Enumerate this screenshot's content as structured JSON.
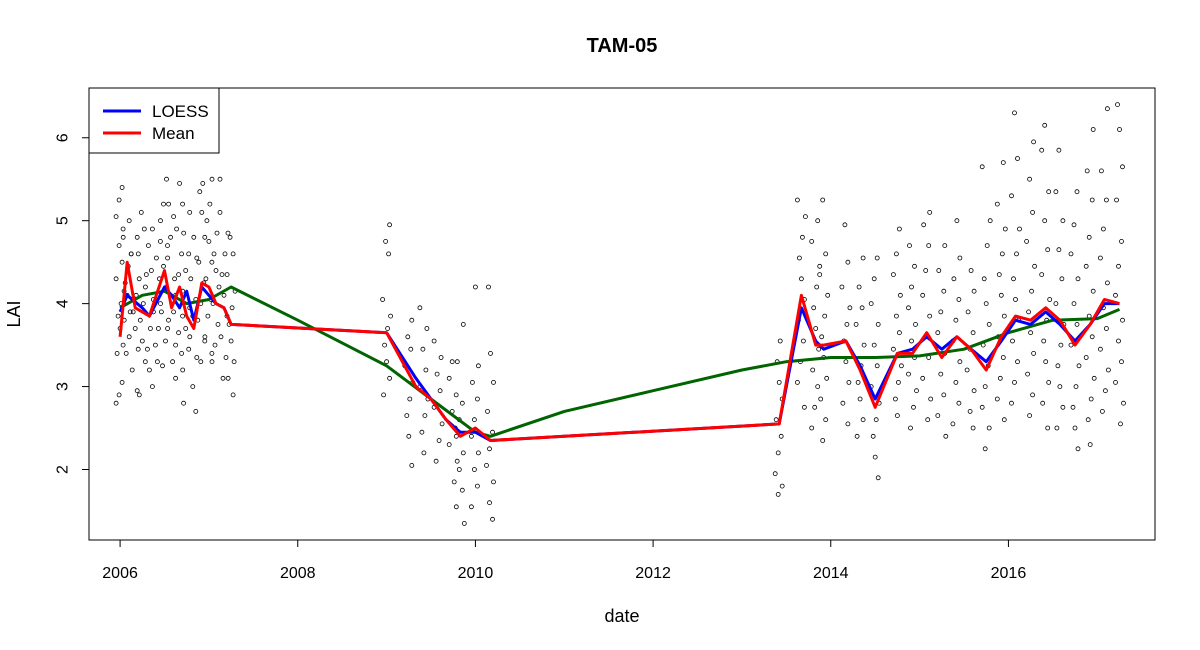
{
  "chart_data": {
    "type": "line",
    "title": "TAM-05",
    "xlabel": "date",
    "ylabel": "LAI",
    "x_unit": "year",
    "xlim": [
      2005.65,
      2017.65
    ],
    "ylim": [
      1.15,
      6.6
    ],
    "x_ticks": [
      2006,
      2008,
      2010,
      2012,
      2014,
      2016
    ],
    "x_tick_labels": [
      "2006",
      "2008",
      "2010",
      "2012",
      "2014",
      "2016"
    ],
    "y_ticks": [
      2,
      3,
      4,
      5,
      6
    ],
    "y_tick_labels": [
      "2",
      "3",
      "4",
      "5",
      "6"
    ],
    "grid": false,
    "legend": {
      "position": "top-left",
      "entries": [
        {
          "label": "LOESS",
          "color": "#0000ff"
        },
        {
          "label": "Mean",
          "color": "#ff0000"
        }
      ]
    },
    "series": [
      {
        "name": "LOESS",
        "color": "#0000ff",
        "points": [
          [
            2006.0,
            3.9
          ],
          [
            2006.08,
            4.1
          ],
          [
            2006.25,
            3.95
          ],
          [
            2006.33,
            3.85
          ],
          [
            2006.5,
            4.2
          ],
          [
            2006.58,
            4.1
          ],
          [
            2006.67,
            3.95
          ],
          [
            2006.75,
            4.15
          ],
          [
            2006.83,
            3.8
          ],
          [
            2006.92,
            4.2
          ],
          [
            2007.0,
            4.1
          ],
          [
            2007.08,
            4.0
          ],
          [
            2007.17,
            3.95
          ],
          [
            2007.25,
            3.75
          ],
          [
            2009.0,
            3.65
          ],
          [
            2009.33,
            3.1
          ],
          [
            2009.5,
            2.85
          ],
          [
            2009.67,
            2.6
          ],
          [
            2009.83,
            2.45
          ],
          [
            2010.0,
            2.45
          ],
          [
            2010.17,
            2.35
          ],
          [
            2013.42,
            2.55
          ],
          [
            2013.67,
            3.95
          ],
          [
            2013.83,
            3.55
          ],
          [
            2013.92,
            3.45
          ],
          [
            2014.17,
            3.55
          ],
          [
            2014.33,
            3.25
          ],
          [
            2014.5,
            2.85
          ],
          [
            2014.75,
            3.4
          ],
          [
            2014.92,
            3.45
          ],
          [
            2015.08,
            3.6
          ],
          [
            2015.25,
            3.45
          ],
          [
            2015.42,
            3.6
          ],
          [
            2015.58,
            3.45
          ],
          [
            2015.75,
            3.3
          ],
          [
            2015.92,
            3.55
          ],
          [
            2016.08,
            3.8
          ],
          [
            2016.25,
            3.75
          ],
          [
            2016.42,
            3.9
          ],
          [
            2016.58,
            3.75
          ],
          [
            2016.75,
            3.55
          ],
          [
            2016.92,
            3.75
          ],
          [
            2017.08,
            4.0
          ],
          [
            2017.25,
            4.0
          ]
        ]
      },
      {
        "name": "Mean",
        "color": "#ff0000",
        "points": [
          [
            2006.0,
            3.6
          ],
          [
            2006.08,
            4.5
          ],
          [
            2006.17,
            3.95
          ],
          [
            2006.33,
            3.85
          ],
          [
            2006.5,
            4.4
          ],
          [
            2006.58,
            3.95
          ],
          [
            2006.67,
            4.2
          ],
          [
            2006.75,
            3.85
          ],
          [
            2006.83,
            3.7
          ],
          [
            2006.92,
            4.25
          ],
          [
            2007.0,
            4.2
          ],
          [
            2007.08,
            4.0
          ],
          [
            2007.17,
            3.95
          ],
          [
            2007.25,
            3.75
          ],
          [
            2009.0,
            3.65
          ],
          [
            2009.33,
            3.0
          ],
          [
            2009.5,
            2.85
          ],
          [
            2009.67,
            2.6
          ],
          [
            2009.83,
            2.4
          ],
          [
            2010.0,
            2.5
          ],
          [
            2010.17,
            2.35
          ],
          [
            2013.42,
            2.55
          ],
          [
            2013.67,
            4.1
          ],
          [
            2013.83,
            3.5
          ],
          [
            2013.92,
            3.5
          ],
          [
            2014.17,
            3.55
          ],
          [
            2014.33,
            3.2
          ],
          [
            2014.5,
            2.75
          ],
          [
            2014.75,
            3.4
          ],
          [
            2014.92,
            3.4
          ],
          [
            2015.08,
            3.65
          ],
          [
            2015.25,
            3.35
          ],
          [
            2015.42,
            3.6
          ],
          [
            2015.58,
            3.45
          ],
          [
            2015.75,
            3.2
          ],
          [
            2015.92,
            3.6
          ],
          [
            2016.08,
            3.85
          ],
          [
            2016.25,
            3.8
          ],
          [
            2016.42,
            3.95
          ],
          [
            2016.58,
            3.8
          ],
          [
            2016.75,
            3.5
          ],
          [
            2016.92,
            3.75
          ],
          [
            2017.08,
            4.05
          ],
          [
            2017.25,
            4.0
          ]
        ]
      },
      {
        "name": "",
        "color": "#006400",
        "points": [
          [
            2006.0,
            3.95
          ],
          [
            2006.25,
            4.1
          ],
          [
            2006.5,
            4.15
          ],
          [
            2006.75,
            4.0
          ],
          [
            2007.0,
            4.05
          ],
          [
            2007.25,
            4.2
          ],
          [
            2008.0,
            3.8
          ],
          [
            2009.0,
            3.25
          ],
          [
            2009.5,
            2.85
          ],
          [
            2010.0,
            2.45
          ],
          [
            2010.17,
            2.4
          ],
          [
            2011.0,
            2.7
          ],
          [
            2012.0,
            2.95
          ],
          [
            2013.0,
            3.2
          ],
          [
            2013.5,
            3.3
          ],
          [
            2014.0,
            3.35
          ],
          [
            2014.5,
            3.35
          ],
          [
            2015.0,
            3.37
          ],
          [
            2015.5,
            3.45
          ],
          [
            2016.0,
            3.65
          ],
          [
            2016.5,
            3.8
          ],
          [
            2017.0,
            3.82
          ],
          [
            2017.25,
            3.93
          ]
        ]
      }
    ],
    "scatter_groups": [
      {
        "x": 2006.0,
        "y": [
          2.8,
          2.9,
          3.05,
          3.4,
          3.5,
          3.7,
          3.85,
          4.0,
          4.15,
          4.3,
          4.5,
          4.7,
          4.9,
          5.05,
          5.25,
          5.4
        ]
      },
      {
        "x": 2006.08,
        "y": [
          3.4,
          3.6,
          3.8,
          3.9,
          4.1,
          4.25,
          4.45,
          4.6,
          4.8,
          5.0
        ]
      },
      {
        "x": 2006.17,
        "y": [
          2.95,
          3.2,
          3.45,
          3.7,
          3.9,
          4.1,
          4.3,
          4.6,
          4.8
        ]
      },
      {
        "x": 2006.25,
        "y": [
          2.9,
          3.3,
          3.55,
          3.8,
          4.0,
          4.35,
          4.6,
          4.9,
          5.1
        ]
      },
      {
        "x": 2006.33,
        "y": [
          3.0,
          3.2,
          3.45,
          3.7,
          3.9,
          4.2,
          4.4,
          4.7,
          4.9
        ]
      },
      {
        "x": 2006.42,
        "y": [
          3.3,
          3.5,
          3.7,
          3.9,
          4.05,
          4.3,
          4.55,
          4.75
        ]
      },
      {
        "x": 2006.5,
        "y": [
          3.25,
          3.55,
          3.8,
          4.0,
          4.2,
          4.45,
          4.7,
          5.0,
          5.2,
          5.5
        ]
      },
      {
        "x": 2006.58,
        "y": [
          3.3,
          3.5,
          3.7,
          3.9,
          4.1,
          4.3,
          4.55,
          4.8,
          5.05,
          5.2
        ]
      },
      {
        "x": 2006.67,
        "y": [
          2.8,
          3.1,
          3.4,
          3.65,
          3.85,
          4.1,
          4.35,
          4.6,
          4.9,
          5.2,
          5.45
        ]
      },
      {
        "x": 2006.75,
        "y": [
          3.2,
          3.45,
          3.7,
          3.95,
          4.15,
          4.4,
          4.6,
          4.85,
          5.1
        ]
      },
      {
        "x": 2006.83,
        "y": [
          2.7,
          3.0,
          3.35,
          3.6,
          3.85,
          4.05,
          4.3,
          4.55,
          4.8
        ]
      },
      {
        "x": 2006.92,
        "y": [
          3.3,
          3.55,
          3.8,
          4.0,
          4.25,
          4.5,
          4.8,
          5.1,
          5.35,
          5.45
        ]
      },
      {
        "x": 2007.0,
        "y": [
          3.4,
          3.6,
          3.85,
          4.05,
          4.3,
          4.5,
          4.75,
          5.0,
          5.2
        ]
      },
      {
        "x": 2007.08,
        "y": [
          3.3,
          3.5,
          3.75,
          4.0,
          4.2,
          4.4,
          4.6,
          4.85,
          5.1,
          5.5
        ]
      },
      {
        "x": 2007.17,
        "y": [
          3.1,
          3.35,
          3.6,
          3.85,
          4.1,
          4.35,
          4.6,
          4.85,
          5.5
        ]
      },
      {
        "x": 2007.25,
        "y": [
          2.9,
          3.1,
          3.3,
          3.55,
          3.75,
          3.95,
          4.15,
          4.35,
          4.6,
          4.8
        ]
      },
      {
        "x": 2009.0,
        "y": [
          2.9,
          3.1,
          3.3,
          3.5,
          3.7,
          3.85,
          4.05,
          4.6,
          4.75,
          4.95
        ]
      },
      {
        "x": 2009.25,
        "y": [
          2.05,
          2.4,
          2.65,
          2.85,
          3.05,
          3.25,
          3.45,
          3.6,
          3.8
        ]
      },
      {
        "x": 2009.42,
        "y": [
          2.2,
          2.45,
          2.65,
          2.85,
          3.0,
          3.2,
          3.45,
          3.7,
          3.95
        ]
      },
      {
        "x": 2009.58,
        "y": [
          2.1,
          2.35,
          2.55,
          2.75,
          2.95,
          3.15,
          3.35,
          3.55
        ]
      },
      {
        "x": 2009.75,
        "y": [
          1.85,
          2.1,
          2.3,
          2.5,
          2.7,
          2.9,
          3.1,
          3.3
        ]
      },
      {
        "x": 2009.83,
        "y": [
          1.35,
          1.55,
          1.75,
          2.0,
          2.2,
          2.4,
          2.6,
          2.8,
          3.3,
          3.75
        ]
      },
      {
        "x": 2010.0,
        "y": [
          1.55,
          1.8,
          2.0,
          2.2,
          2.4,
          2.6,
          2.85,
          3.05,
          3.25,
          4.2
        ]
      },
      {
        "x": 2010.17,
        "y": [
          1.4,
          1.6,
          1.85,
          2.05,
          2.25,
          2.45,
          2.7,
          3.05,
          3.4,
          4.2
        ]
      },
      {
        "x": 2013.42,
        "y": [
          1.7,
          1.8,
          1.95,
          2.2,
          2.4,
          2.6,
          2.85,
          3.05,
          3.3,
          3.55
        ]
      },
      {
        "x": 2013.67,
        "y": [
          2.75,
          3.05,
          3.3,
          3.55,
          3.8,
          4.05,
          4.3,
          4.55,
          4.8,
          5.05,
          5.25
        ]
      },
      {
        "x": 2013.83,
        "y": [
          2.5,
          2.75,
          3.0,
          3.2,
          3.45,
          3.7,
          3.95,
          4.2,
          4.45,
          4.75,
          5.0
        ]
      },
      {
        "x": 2013.92,
        "y": [
          2.35,
          2.6,
          2.85,
          3.1,
          3.35,
          3.6,
          3.85,
          4.1,
          4.35,
          4.6,
          5.25
        ]
      },
      {
        "x": 2014.17,
        "y": [
          2.55,
          2.8,
          3.05,
          3.3,
          3.55,
          3.75,
          3.95,
          4.2,
          4.5,
          4.95
        ]
      },
      {
        "x": 2014.33,
        "y": [
          2.4,
          2.6,
          2.85,
          3.05,
          3.25,
          3.5,
          3.75,
          3.95,
          4.2,
          4.55
        ]
      },
      {
        "x": 2014.5,
        "y": [
          1.9,
          2.15,
          2.4,
          2.6,
          2.8,
          3.0,
          3.25,
          3.5,
          3.75,
          4.0,
          4.3,
          4.55
        ]
      },
      {
        "x": 2014.75,
        "y": [
          2.65,
          2.85,
          3.05,
          3.25,
          3.45,
          3.65,
          3.85,
          4.1,
          4.35,
          4.6,
          4.9
        ]
      },
      {
        "x": 2014.92,
        "y": [
          2.5,
          2.75,
          2.95,
          3.15,
          3.35,
          3.55,
          3.75,
          3.95,
          4.2,
          4.45,
          4.7
        ]
      },
      {
        "x": 2015.08,
        "y": [
          2.6,
          2.85,
          3.1,
          3.35,
          3.6,
          3.85,
          4.1,
          4.4,
          4.7,
          4.95,
          5.1
        ]
      },
      {
        "x": 2015.25,
        "y": [
          2.4,
          2.65,
          2.9,
          3.15,
          3.4,
          3.65,
          3.9,
          4.15,
          4.4,
          4.7
        ]
      },
      {
        "x": 2015.42,
        "y": [
          2.55,
          2.8,
          3.05,
          3.3,
          3.55,
          3.8,
          4.05,
          4.3,
          4.55,
          5.0
        ]
      },
      {
        "x": 2015.58,
        "y": [
          2.5,
          2.7,
          2.95,
          3.2,
          3.45,
          3.65,
          3.9,
          4.15,
          4.4
        ]
      },
      {
        "x": 2015.75,
        "y": [
          2.25,
          2.5,
          2.75,
          3.0,
          3.25,
          3.5,
          3.75,
          4.0,
          4.3,
          4.7,
          5.0,
          5.65
        ]
      },
      {
        "x": 2015.92,
        "y": [
          2.6,
          2.85,
          3.1,
          3.35,
          3.6,
          3.85,
          4.1,
          4.35,
          4.6,
          4.9,
          5.2,
          5.7
        ]
      },
      {
        "x": 2016.08,
        "y": [
          2.8,
          3.05,
          3.3,
          3.55,
          3.8,
          4.05,
          4.3,
          4.6,
          4.9,
          5.3,
          5.75,
          6.3
        ]
      },
      {
        "x": 2016.25,
        "y": [
          2.65,
          2.9,
          3.15,
          3.4,
          3.65,
          3.9,
          4.15,
          4.45,
          4.75,
          5.1,
          5.5,
          5.95
        ]
      },
      {
        "x": 2016.42,
        "y": [
          2.5,
          2.8,
          3.05,
          3.3,
          3.55,
          3.8,
          4.05,
          4.35,
          4.65,
          5.0,
          5.35,
          5.85,
          6.15
        ]
      },
      {
        "x": 2016.58,
        "y": [
          2.5,
          2.75,
          3.0,
          3.25,
          3.5,
          3.75,
          4.0,
          4.3,
          4.65,
          5.0,
          5.35,
          5.85
        ]
      },
      {
        "x": 2016.75,
        "y": [
          2.25,
          2.5,
          2.75,
          3.0,
          3.25,
          3.5,
          3.75,
          4.0,
          4.3,
          4.6,
          4.95,
          5.35
        ]
      },
      {
        "x": 2016.92,
        "y": [
          2.3,
          2.6,
          2.85,
          3.1,
          3.35,
          3.6,
          3.85,
          4.15,
          4.45,
          4.8,
          5.25,
          5.6,
          6.1
        ]
      },
      {
        "x": 2017.08,
        "y": [
          2.7,
          2.95,
          3.2,
          3.45,
          3.7,
          3.95,
          4.25,
          4.55,
          4.9,
          5.25,
          5.6,
          6.35
        ]
      },
      {
        "x": 2017.25,
        "y": [
          2.55,
          2.8,
          3.05,
          3.3,
          3.55,
          3.8,
          4.1,
          4.45,
          4.75,
          5.25,
          5.65,
          6.1,
          6.4
        ]
      }
    ]
  }
}
